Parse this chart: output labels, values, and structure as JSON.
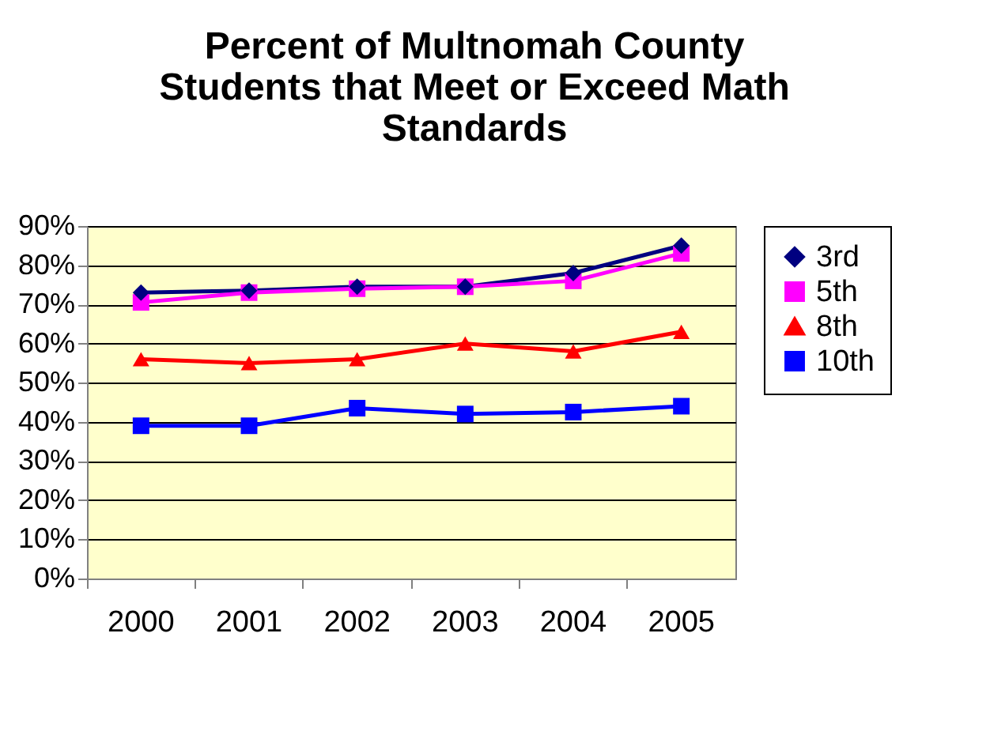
{
  "chart_data": {
    "type": "line",
    "title": "Percent of Multnomah County Students that Meet or Exceed Math Standards",
    "categories": [
      "2000",
      "2001",
      "2002",
      "2003",
      "2004",
      "2005"
    ],
    "series": [
      {
        "name": "3rd",
        "color": "#000080",
        "marker": "diamond",
        "values": [
          73,
          73.5,
          74.5,
          74.5,
          78,
          85
        ]
      },
      {
        "name": "5th",
        "color": "#ff00ff",
        "marker": "square",
        "values": [
          70.5,
          73,
          74,
          74.5,
          76,
          83
        ]
      },
      {
        "name": "8th",
        "color": "#ff0000",
        "marker": "triangle",
        "values": [
          56,
          55,
          56,
          60,
          58,
          63
        ]
      },
      {
        "name": "10th",
        "color": "#0000ff",
        "marker": "square",
        "values": [
          39,
          39,
          43.5,
          42,
          42.5,
          44
        ]
      }
    ],
    "ylim": [
      0,
      90
    ],
    "yticks": [
      {
        "value": 0,
        "label": "0%"
      },
      {
        "value": 10,
        "label": "10%"
      },
      {
        "value": 20,
        "label": "20%"
      },
      {
        "value": 30,
        "label": "30%"
      },
      {
        "value": 40,
        "label": "40%"
      },
      {
        "value": 50,
        "label": "50%"
      },
      {
        "value": 60,
        "label": "60%"
      },
      {
        "value": 70,
        "label": "70%"
      },
      {
        "value": 80,
        "label": "80%"
      },
      {
        "value": 90,
        "label": "90%"
      }
    ],
    "grid": "y",
    "legend": "right"
  }
}
